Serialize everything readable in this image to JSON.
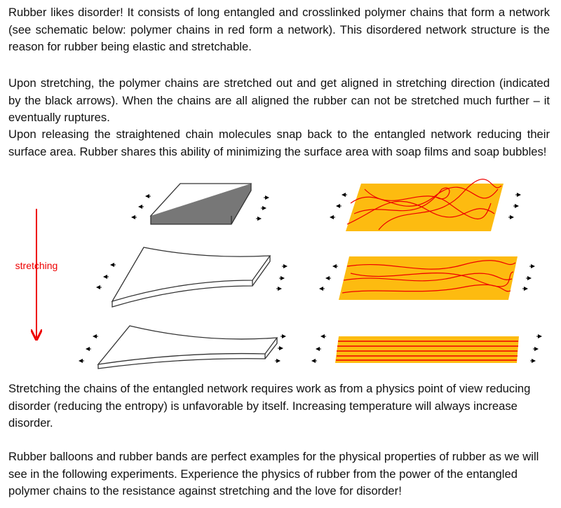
{
  "paragraphs": [
    "Rubber likes disorder! It consists of long entangled and crosslinked polymer chains that form a network (see schematic below: polymer chains in red form a network). This disordered network structure is the reason for rubber being elastic and stretchable.",
    "Upon stretching, the polymer chains are stretched out and get aligned in stretching direction (indicated by the black arrows). When the chains are all aligned the rubber can not be stretched much further – it eventually ruptures.",
    "Upon releasing the straightened chain molecules snap back to the entangled network reducing their surface area. Rubber shares this ability of minimizing the surface area with soap films and soap bubbles!",
    "Stretching the chains of the entangled network requires work as from a physics point of view reducing disorder (reducing the entropy) is unfavorable by itself. Increasing temperature will always increase disorder.",
    "Rubber balloons and rubber bands are perfect examples for the physical properties of rubber as we will see in the following experiments. Experience the physics of rubber from the power of the entangled polymer chains to the resistance against stretching and the love for disorder!"
  ],
  "figure": {
    "label": "stretching"
  }
}
